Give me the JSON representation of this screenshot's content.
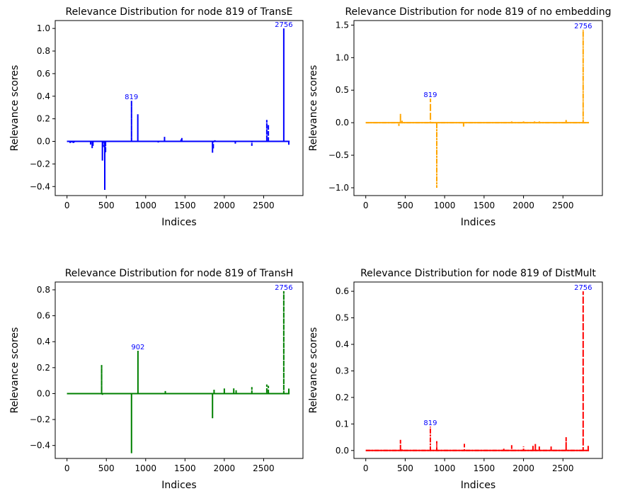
{
  "chart_data": [
    {
      "type": "line",
      "title": "Relevance Distribution for node  819 of TransE",
      "xlabel": "Indices",
      "ylabel": "Relevance scores",
      "xlim": [
        -150,
        3000
      ],
      "ylim": [
        -0.48,
        1.07
      ],
      "xticks": [
        0,
        500,
        1000,
        1500,
        2000,
        2500
      ],
      "yticks": [
        -0.4,
        -0.2,
        0.0,
        0.2,
        0.4,
        0.6,
        0.8,
        1.0
      ],
      "ytick_labels": [
        "−0.4",
        "−0.2",
        "0.0",
        "0.2",
        "0.4",
        "0.6",
        "0.8",
        "1.0"
      ],
      "color": "#0000ff",
      "line_style": "dashed",
      "grid": false,
      "series": [
        {
          "x": [
            0,
            40,
            60,
            80,
            90,
            300,
            320,
            330,
            450,
            460,
            480,
            490,
            820,
            900,
            1160,
            1240,
            1450,
            1460,
            1850,
            1860,
            1880,
            2140,
            2350,
            2540,
            2560,
            2756,
            2820
          ],
          "values": [
            0,
            -0.02,
            -0.015,
            -0.015,
            -0.01,
            -0.03,
            -0.06,
            -0.04,
            -0.17,
            -0.05,
            -0.43,
            -0.1,
            0.36,
            0.24,
            -0.01,
            0.04,
            0.02,
            0.03,
            -0.1,
            -0.07,
            0.01,
            -0.02,
            -0.04,
            0.19,
            0.15,
            1.0,
            -0.03
          ]
        }
      ],
      "annotations": [
        {
          "text": "819",
          "x": 819,
          "y": 0.36
        },
        {
          "text": "2756",
          "x": 2756,
          "y": 1.0
        }
      ]
    },
    {
      "type": "line",
      "title": "Relevance Distribution for node  819 of no embedding",
      "xlabel": "Indices",
      "ylabel": "Relevance scores",
      "xlim": [
        -150,
        3000
      ],
      "ylim": [
        -1.12,
        1.57
      ],
      "xticks": [
        0,
        500,
        1000,
        1500,
        2000,
        2500
      ],
      "yticks": [
        -1.0,
        -0.5,
        0.0,
        0.5,
        1.0,
        1.5
      ],
      "ytick_labels": [
        "−1.0",
        "−0.5",
        "0.0",
        "0.5",
        "1.0",
        "1.5"
      ],
      "color": "#ffa500",
      "line_style": "dashdot",
      "grid": false,
      "series": [
        {
          "x": [
            0,
            40,
            420,
            440,
            460,
            820,
            900,
            1240,
            1750,
            1850,
            2000,
            2140,
            2200,
            2350,
            2540,
            2756,
            2820
          ],
          "values": [
            0,
            0.01,
            -0.05,
            0.14,
            0.03,
            0.37,
            -1.0,
            -0.06,
            0.01,
            0.02,
            0.02,
            0.02,
            0.02,
            0.01,
            0.05,
            1.43,
            -0.01
          ]
        }
      ],
      "annotations": [
        {
          "text": "819",
          "x": 819,
          "y": 0.37
        },
        {
          "text": "2756",
          "x": 2756,
          "y": 1.43
        }
      ]
    },
    {
      "type": "line",
      "title": "Relevance Distribution for node  819 of TransH",
      "xlabel": "Indices",
      "ylabel": "Relevance scores",
      "xlim": [
        -150,
        3000
      ],
      "ylim": [
        -0.5,
        0.86
      ],
      "xticks": [
        0,
        500,
        1000,
        1500,
        2000,
        2500
      ],
      "yticks": [
        -0.4,
        -0.2,
        0.0,
        0.2,
        0.4,
        0.6,
        0.8
      ],
      "ytick_labels": [
        "−0.4",
        "−0.2",
        "0.0",
        "0.2",
        "0.4",
        "0.6",
        "0.8"
      ],
      "color": "#008000",
      "line_style": "dashed",
      "grid": false,
      "series": [
        {
          "x": [
            0,
            440,
            450,
            820,
            902,
            1250,
            1750,
            1850,
            1870,
            2000,
            2120,
            2150,
            2350,
            2540,
            2560,
            2756,
            2820
          ],
          "values": [
            0,
            0.22,
            -0.01,
            -0.46,
            0.33,
            0.02,
            0.01,
            -0.19,
            0.03,
            0.04,
            0.04,
            0.03,
            0.05,
            0.07,
            0.06,
            0.79,
            0.04
          ]
        }
      ],
      "annotations": [
        {
          "text": "902",
          "x": 902,
          "y": 0.33
        },
        {
          "text": "2756",
          "x": 2756,
          "y": 0.79
        }
      ]
    },
    {
      "type": "line",
      "title": "Relevance Distribution for node  819 of DistMult",
      "xlabel": "Indices",
      "ylabel": "Relevance scores",
      "xlim": [
        -150,
        3000
      ],
      "ylim": [
        -0.03,
        0.635
      ],
      "xticks": [
        0,
        500,
        1000,
        1500,
        2000,
        2500
      ],
      "yticks": [
        0.0,
        0.1,
        0.2,
        0.3,
        0.4,
        0.5,
        0.6
      ],
      "ytick_labels": [
        "0.0",
        "0.1",
        "0.2",
        "0.3",
        "0.4",
        "0.5",
        "0.6"
      ],
      "color": "#ff0000",
      "line_style": "dashdot",
      "grid": false,
      "series": [
        {
          "x": [
            0,
            440,
            460,
            819,
            900,
            1250,
            1750,
            1850,
            2000,
            2120,
            2150,
            2200,
            2350,
            2540,
            2756,
            2820
          ],
          "values": [
            0,
            0.04,
            0.005,
            0.09,
            0.035,
            0.025,
            0.01,
            0.02,
            0.015,
            0.02,
            0.025,
            0.015,
            0.015,
            0.05,
            0.6,
            0.02
          ]
        }
      ],
      "annotations": [
        {
          "text": "819",
          "x": 819,
          "y": 0.09
        },
        {
          "text": "2756",
          "x": 2756,
          "y": 0.6
        }
      ]
    }
  ]
}
